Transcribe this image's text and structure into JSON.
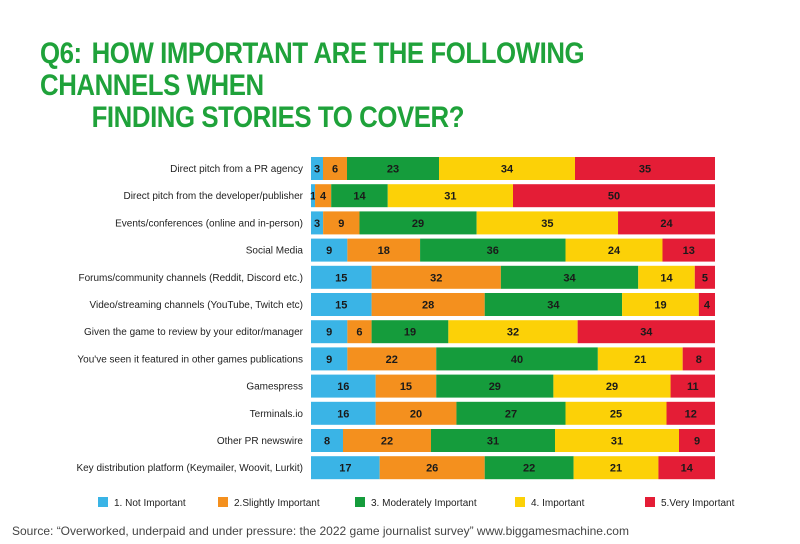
{
  "title": {
    "prefix": "Q6:",
    "line1": "HOW IMPORTANT ARE THE FOLLOWING CHANNELS WHEN",
    "line2": "FINDING STORIES TO COVER?"
  },
  "source": "Source: “Overworked, underpaid and under pressure: the 2022 game journalist survey” www.biggamesmachine.com",
  "chart_data": {
    "type": "bar",
    "orientation": "horizontal",
    "stacked": true,
    "title": "Q6: HOW IMPORTANT ARE THE FOLLOWING CHANNELS WHEN FINDING STORIES TO COVER?",
    "xlabel": "",
    "ylabel": "",
    "xlim": [
      0,
      100
    ],
    "grid": false,
    "legend_position": "bottom",
    "categories": [
      "Direct pitch from a PR agency",
      "Direct pitch from the developer/publisher",
      "Events/conferences (online and in-person)",
      "Social Media",
      "Forums/community channels (Reddit, Discord etc.)",
      "Video/streaming channels (YouTube, Twitch etc)",
      "Given the game to review by your editor/manager",
      "You've seen it featured in other games publications",
      "Gamespress",
      "Terminals.io",
      "Other PR newswire",
      "Key distribution platform (Keymailer, Woovit, Lurkit)"
    ],
    "series": [
      {
        "name": "1. Not Important",
        "color": "#3ab4e6",
        "values": [
          3,
          1,
          3,
          9,
          15,
          15,
          9,
          9,
          16,
          16,
          8,
          17
        ]
      },
      {
        "name": "2.Slightly Important",
        "color": "#f4901e",
        "values": [
          6,
          4,
          9,
          18,
          32,
          28,
          6,
          22,
          15,
          20,
          22,
          26
        ]
      },
      {
        "name": "3. Moderately Important",
        "color": "#159c3c",
        "values": [
          23,
          14,
          29,
          36,
          34,
          34,
          19,
          40,
          29,
          27,
          31,
          22
        ]
      },
      {
        "name": "4. Important",
        "color": "#fcd107",
        "values": [
          34,
          31,
          35,
          24,
          14,
          19,
          32,
          21,
          29,
          25,
          31,
          21
        ]
      },
      {
        "name": "5.Very Important",
        "color": "#e41d36",
        "values": [
          35,
          50,
          24,
          13,
          5,
          4,
          34,
          8,
          11,
          12,
          9,
          14
        ]
      }
    ]
  }
}
